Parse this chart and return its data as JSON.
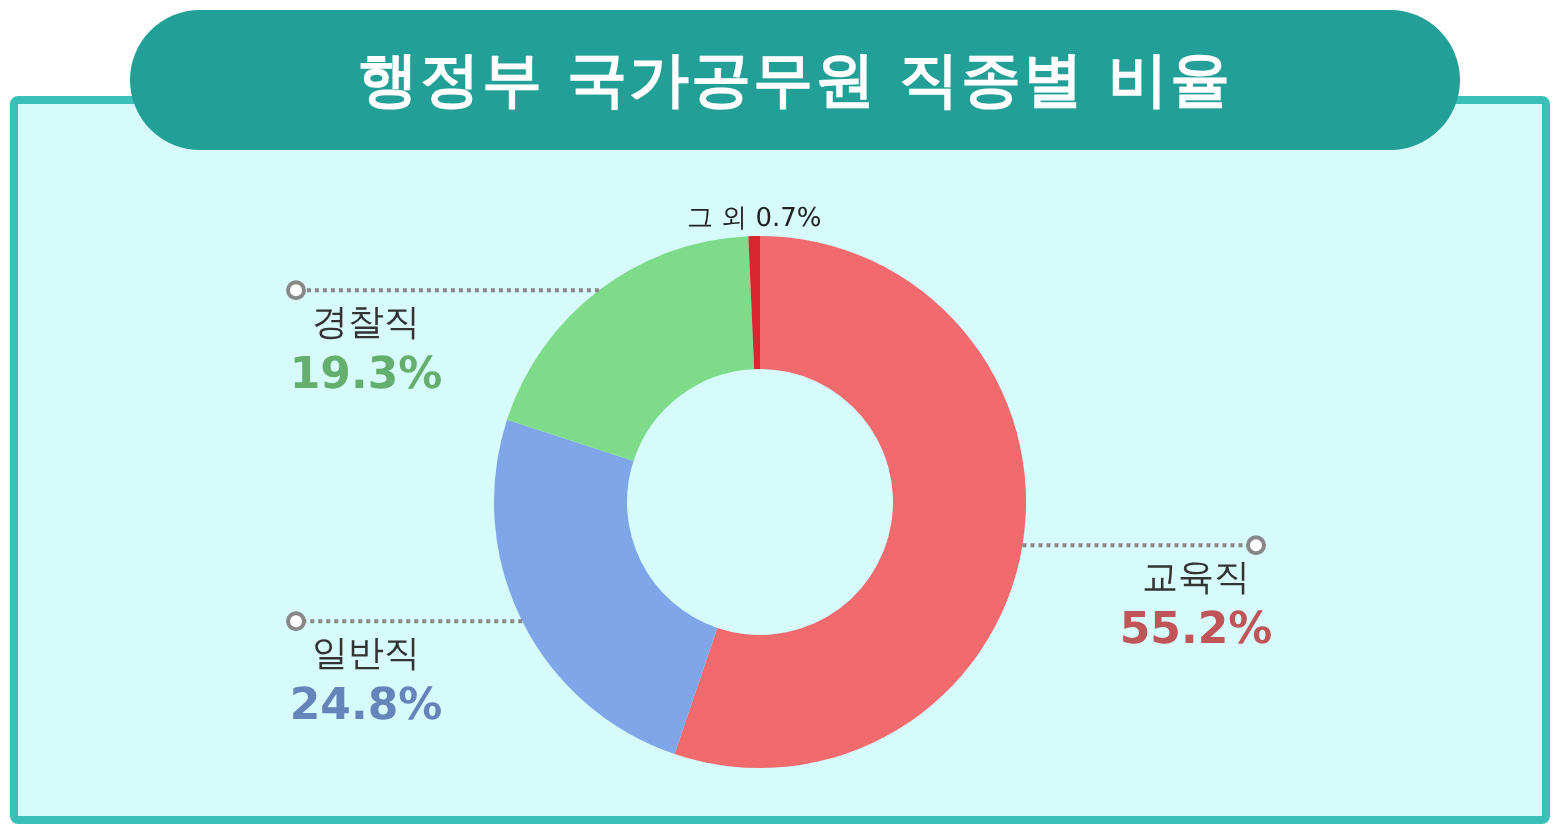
{
  "chart_data": {
    "type": "donut",
    "title": "행정부 국가공무원 직종별 비율",
    "categories": [
      "교육직",
      "일반직",
      "경찰직",
      "그 외"
    ],
    "values": [
      55.2,
      24.8,
      19.3,
      0.7
    ],
    "value_labels": [
      "55.2%",
      "24.8%",
      "19.3%",
      "0.7%"
    ],
    "colors": [
      "#f06a6e",
      "#7ea6e8",
      "#7ddb8a",
      "#d9262f"
    ],
    "legend": false
  }
}
